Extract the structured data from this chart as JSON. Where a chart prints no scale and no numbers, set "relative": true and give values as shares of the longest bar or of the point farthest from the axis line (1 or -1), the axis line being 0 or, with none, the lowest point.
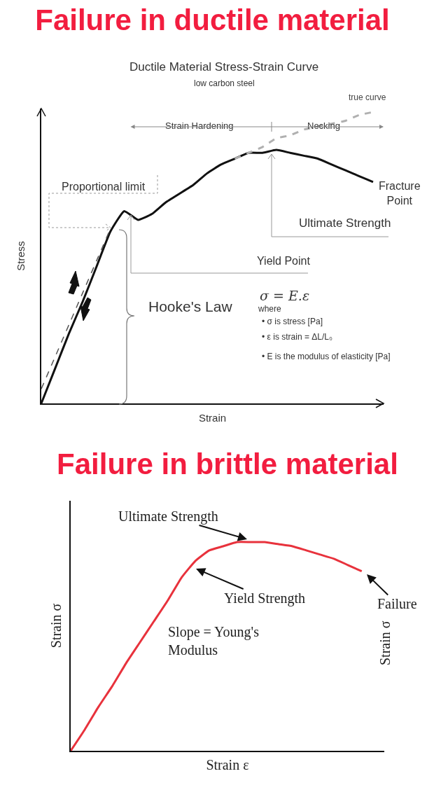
{
  "chart_data": [
    {
      "type": "line",
      "title": "Failure in ductile material",
      "subtitle": "Ductile Material Stress-Strain Curve",
      "xlabel": "Strain",
      "ylabel": "Stress",
      "relative": true,
      "categories": [
        null,
        null,
        null,
        null,
        null,
        null,
        null,
        null,
        null,
        null,
        null,
        null,
        null,
        null,
        null,
        null,
        null,
        null,
        null,
        null,
        null,
        null,
        null,
        null,
        null
      ],
      "series": [
        {
          "color": "#111111",
          "line_style": "solid",
          "values": [
            0,
            0.12,
            0.24,
            0.35,
            0.47,
            0.59,
            0.66,
            0.63,
            0.65,
            0.69,
            0.72,
            0.75,
            0.79,
            0.82,
            0.84,
            0.86,
            0.86,
            0.87,
            0.86,
            0.85,
            0.84,
            0.82,
            0.8,
            0.78,
            0.76
          ]
        },
        {
          "color": "#555555",
          "line_style": "dashed",
          "values": [
            0.05,
            0.16,
            0.27,
            0.38,
            0.49,
            0.6,
            null,
            null,
            null,
            null,
            null,
            null,
            null,
            null,
            null,
            null,
            null,
            null,
            null,
            null,
            null,
            null,
            null,
            null,
            null
          ]
        },
        {
          "name": "true curve",
          "color": "#b0b0b0",
          "line_style": "dashed",
          "values": [
            null,
            null,
            null,
            null,
            null,
            null,
            null,
            null,
            null,
            null,
            null,
            null,
            null,
            null,
            0.84,
            0.86,
            0.88,
            0.91,
            0.92,
            0.94,
            0.95,
            0.96,
            0.97,
            0.99,
            1.0
          ]
        }
      ],
      "annotations": [
        "low carbon steel",
        "Strain Hardening",
        "Necking",
        "Proportional limit",
        "Ultimate Strength",
        "Fracture\nPoint",
        "Yield Point",
        "Hooke's Law",
        "σ = E.ε",
        "where",
        "• σ is stress [Pa]",
        "• ε is strain = ΔL/L₀",
        "• E is the modulus of elasticity [Pa]"
      ]
    },
    {
      "type": "line",
      "title": "Failure in brittle material",
      "xlabel": "Strain ε",
      "ylabel": "Strain σ",
      "y2label": "Strain σ",
      "relative": true,
      "categories": [
        null,
        null,
        null,
        null,
        null,
        null,
        null,
        null,
        null,
        null,
        null,
        null,
        null,
        null,
        null,
        null,
        null,
        null,
        null,
        null,
        null,
        null
      ],
      "series": [
        {
          "color": "#e8323c",
          "line_style": "solid",
          "values": [
            0,
            0.1,
            0.21,
            0.31,
            0.42,
            0.52,
            0.62,
            0.72,
            0.83,
            0.91,
            0.96,
            0.98,
            1.0,
            1.0,
            1.0,
            0.99,
            0.98,
            0.96,
            0.94,
            0.92,
            0.89,
            0.86
          ]
        }
      ],
      "annotations": [
        "Ultimate Strength",
        "Yield Strength",
        "Failure",
        "Slope = Young's\nModulus"
      ]
    }
  ]
}
